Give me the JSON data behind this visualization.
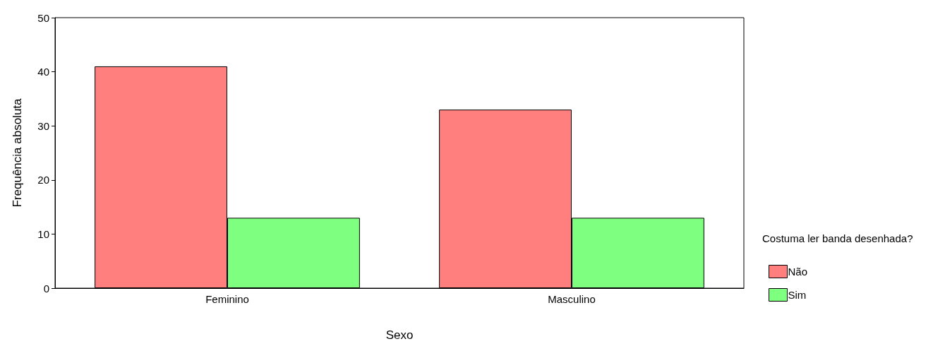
{
  "chart_data": {
    "type": "bar",
    "xlabel": "Sexo",
    "ylabel": "Frequência absoluta",
    "legend_title": "Costuma ler banda desenhada?",
    "categories": [
      "Feminino",
      "Masculino"
    ],
    "series": [
      {
        "name": "Não",
        "color": "#ff7f7f",
        "values": [
          41,
          33
        ]
      },
      {
        "name": "Sim",
        "color": "#7fff7f",
        "values": [
          13,
          13
        ]
      }
    ],
    "ylim": [
      0,
      50
    ],
    "yticks": [
      0,
      10,
      20,
      30,
      40,
      50
    ],
    "grid": false,
    "legend": "right"
  }
}
